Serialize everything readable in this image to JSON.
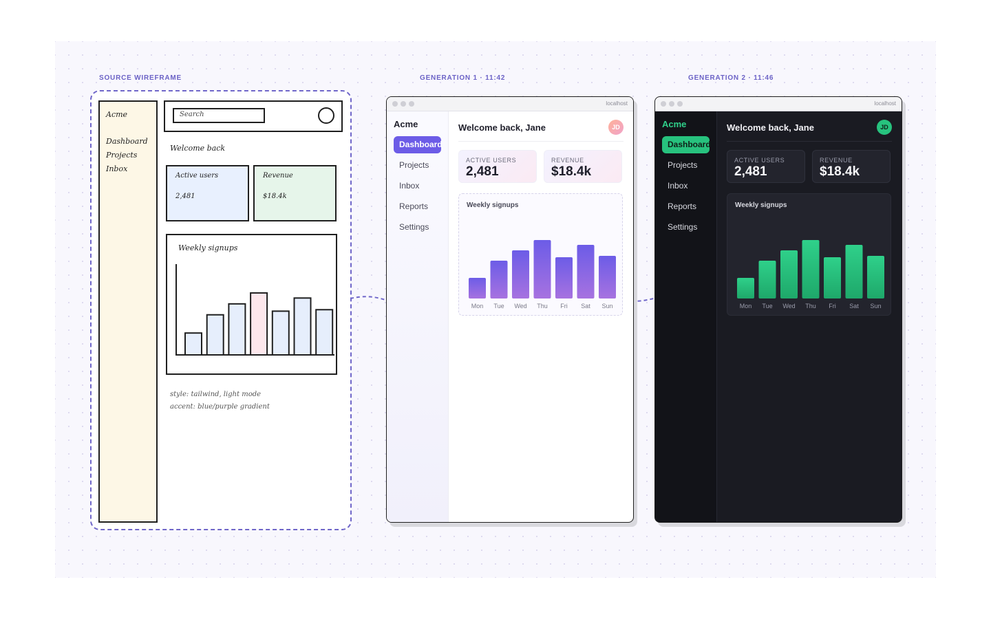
{
  "labels": {
    "source": "SOURCE WIREFRAME",
    "gen1": "GENERATION 1 · 11:42",
    "gen2": "GENERATION 2 · 11:46"
  },
  "wireframe": {
    "brand": "Acme",
    "nav": [
      "Dashboard",
      "Projects",
      "Inbox"
    ],
    "search_placeholder": "Search",
    "welcome": "Welcome back",
    "cards": [
      {
        "label": "Active users",
        "value": "2,481"
      },
      {
        "label": "Revenue",
        "value": "$18.4k"
      }
    ],
    "chart_title": "Weekly signups",
    "notes": [
      "style: tailwind, light mode",
      "accent: blue/purple gradient"
    ],
    "colors": {
      "sidebar": "#fdf7e6",
      "card_users": "#e8f0fe",
      "card_revenue": "#e6f5ea",
      "bar": "#e6eefc",
      "bar_highlight": "#fde7ec"
    }
  },
  "gen1": {
    "url": "localhost",
    "brand": "Acme",
    "nav": [
      "Dashboard",
      "Projects",
      "Inbox",
      "Reports",
      "Settings"
    ],
    "active_nav": 0,
    "welcome": "Welcome back, Jane",
    "avatar": "JD",
    "cards": [
      {
        "label": "ACTIVE USERS",
        "value": "2,481"
      },
      {
        "label": "REVENUE",
        "value": "$18.4k"
      }
    ],
    "chart_title": "Weekly signups",
    "colors": {
      "accent": "#6c5ce7",
      "bar_top": "#6c5ce7",
      "bar_bottom": "#a772e0"
    }
  },
  "gen2": {
    "url": "localhost",
    "brand": "Acme",
    "nav": [
      "Dashboard",
      "Projects",
      "Inbox",
      "Reports",
      "Settings"
    ],
    "active_nav": 0,
    "welcome": "Welcome back, Jane",
    "avatar": "JD",
    "cards": [
      {
        "label": "ACTIVE USERS",
        "value": "2,481"
      },
      {
        "label": "REVENUE",
        "value": "$18.4k"
      }
    ],
    "chart_title": "Weekly signups",
    "colors": {
      "accent": "#27c27e",
      "bar_top": "#2fd08a",
      "bar_bottom": "#1ea86a"
    }
  },
  "chart_data": {
    "type": "bar",
    "categories": [
      "Mon",
      "Tue",
      "Wed",
      "Thu",
      "Fri",
      "Sat",
      "Sun"
    ],
    "values": [
      30,
      55,
      70,
      85,
      60,
      78,
      62
    ],
    "ylim": [
      0,
      100
    ],
    "grid": false
  }
}
